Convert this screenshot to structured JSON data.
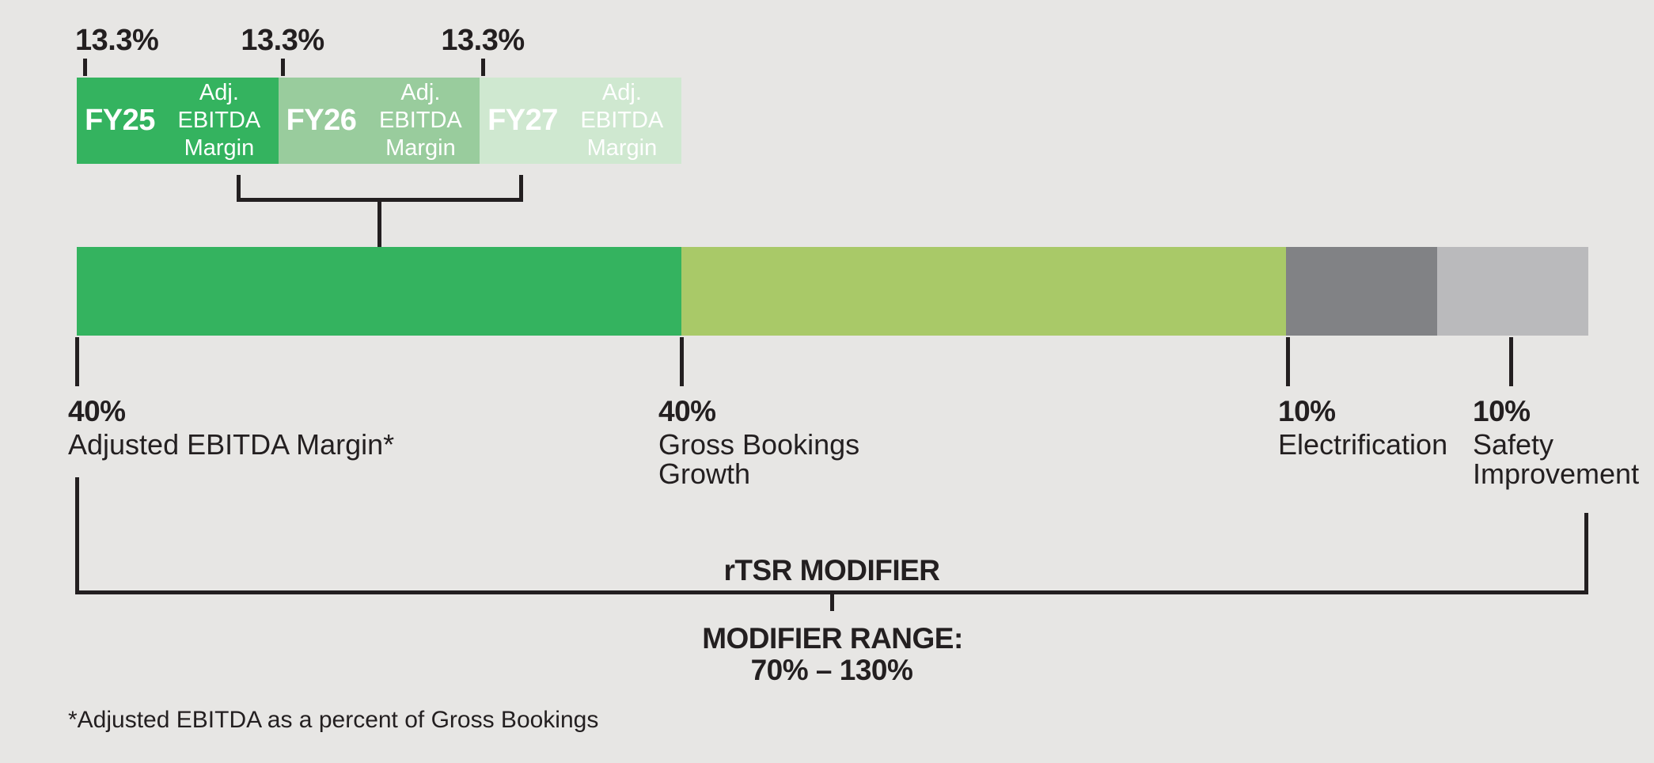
{
  "colors": {
    "background": "#e7e6e4",
    "green_dark": "#34b35f",
    "green_medium": "#99cc9d",
    "green_light": "#cfe8d0",
    "yellow_green": "#a9c968",
    "gray_dark": "#818285",
    "gray_light": "#bababc",
    "text": "#231f20",
    "line": "#231f20",
    "segment_text": "#ffffff"
  },
  "top_bar": {
    "segments": [
      {
        "weight": "13.3%",
        "fy": "FY25",
        "metric": "Adj. EBITDA Margin"
      },
      {
        "weight": "13.3%",
        "fy": "FY26",
        "metric": "Adj. EBITDA Margin"
      },
      {
        "weight": "13.3%",
        "fy": "FY27",
        "metric": "Adj. EBITDA Margin"
      }
    ]
  },
  "main_bar": {
    "segments": [
      {
        "pct": "40%",
        "name": "Adjusted EBITDA Margin*"
      },
      {
        "pct": "40%",
        "name": "Gross Bookings\nGrowth"
      },
      {
        "pct": "10%",
        "name": "Electrification"
      },
      {
        "pct": "10%",
        "name": "Safety\nImprovement"
      }
    ]
  },
  "modifier": {
    "title": "rTSR MODIFIER",
    "range_label": "MODIFIER RANGE:",
    "range_value": "70% – 130%"
  },
  "footnote": "*Adjusted EBITDA as a percent of Gross Bookings",
  "chart_data": {
    "type": "bar",
    "subtype": "100-percent-stacked-weighting",
    "title": "rTSR MODIFIER",
    "categories": [
      "Adjusted EBITDA Margin*",
      "Gross Bookings Growth",
      "Electrification",
      "Safety Improvement"
    ],
    "values": [
      40,
      40,
      10,
      10
    ],
    "unit": "%",
    "breakdown_of_first_segment": {
      "categories": [
        "FY25 Adj. EBITDA Margin",
        "FY26 Adj. EBITDA Margin",
        "FY27 Adj. EBITDA Margin"
      ],
      "values": [
        13.3,
        13.3,
        13.3
      ],
      "unit": "%"
    },
    "modifier_range": {
      "label": "MODIFIER RANGE:",
      "min": 70,
      "max": 130,
      "unit": "%"
    },
    "legend_position": "none",
    "grid": false,
    "footnote": "*Adjusted EBITDA as a percent of Gross Bookings"
  }
}
